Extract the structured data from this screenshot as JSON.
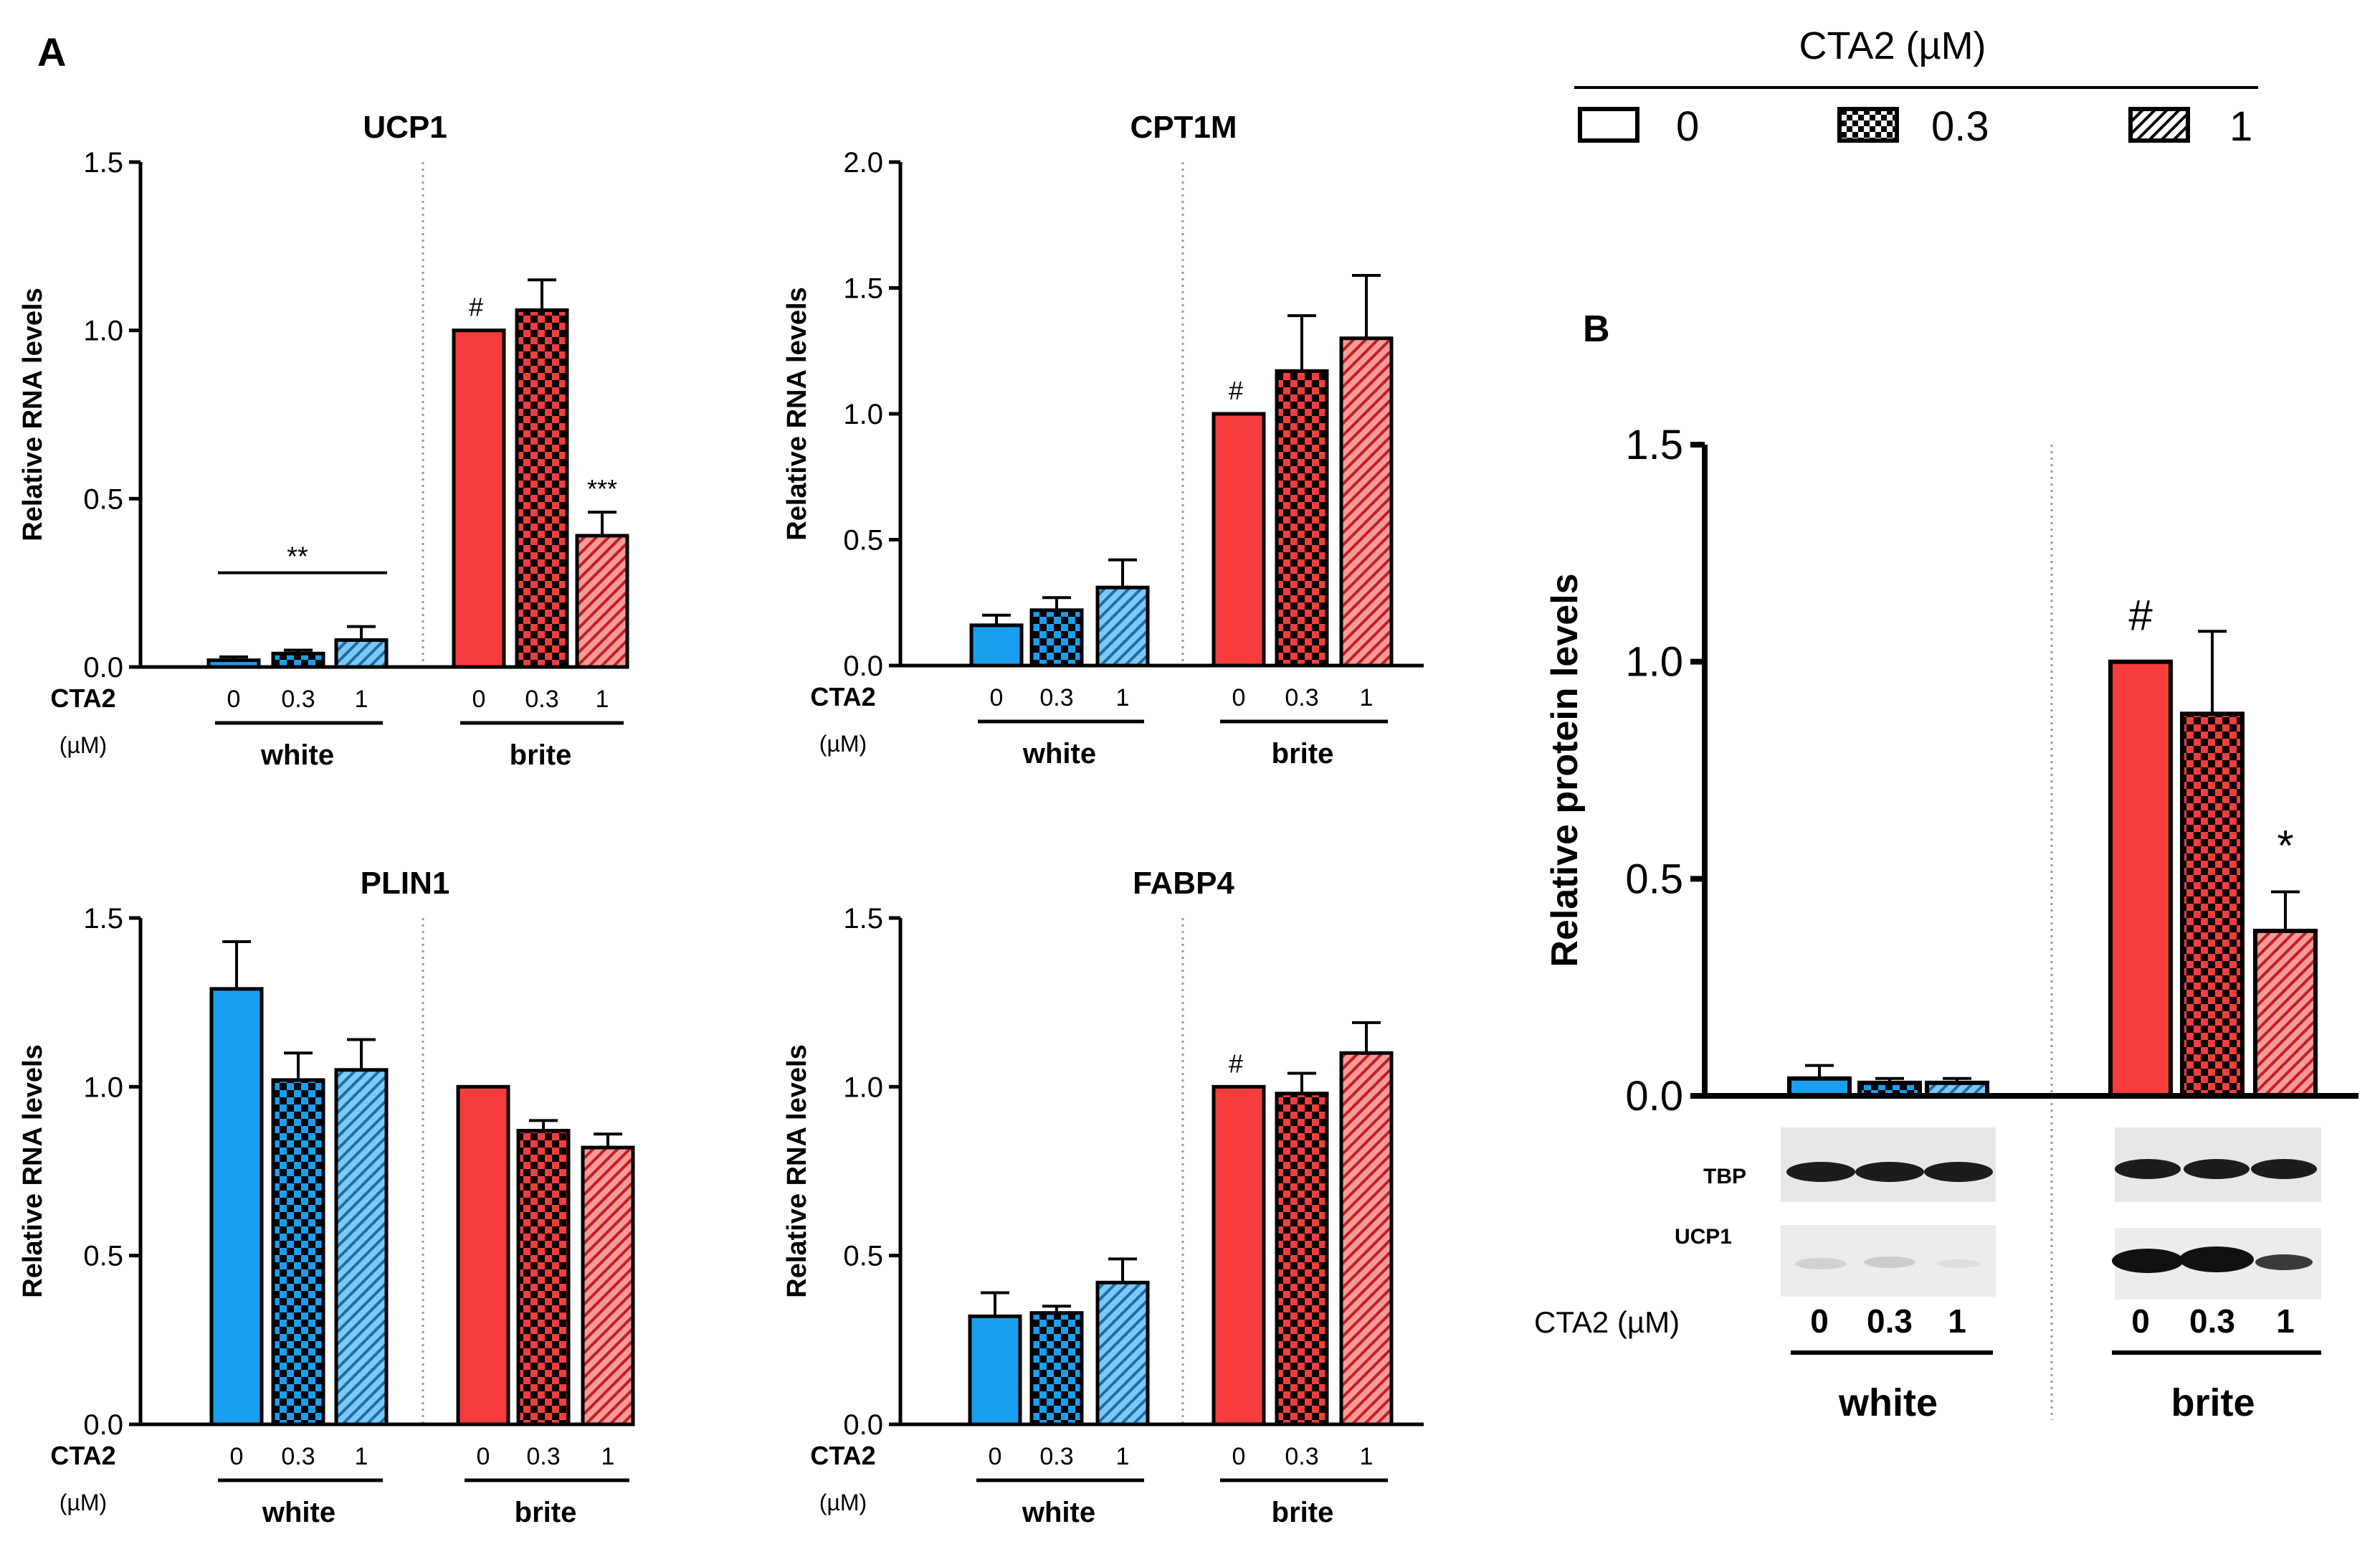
{
  "panel_labels": {
    "a": "A",
    "b": "B"
  },
  "legend": {
    "title": "CTA2 (µM)",
    "entries": [
      "0",
      "0.3",
      "1"
    ]
  },
  "colors": {
    "white_group": "#1a9fef",
    "brite_group": "#f53d3d",
    "axis": "#000000"
  },
  "x_labels": {
    "cta2_line1": "CTA2",
    "cta2_line2": "(µM)",
    "cta2_full": "CTA2 (µM)",
    "doses": [
      "0",
      "0.3",
      "1"
    ],
    "groups": [
      "white",
      "brite"
    ]
  },
  "blot": {
    "rows": [
      "TBP",
      "UCP1"
    ]
  },
  "chart_data": [
    {
      "id": "ucp1",
      "type": "bar",
      "title": "UCP1",
      "ylabel": "Relative RNA levels",
      "ylim": [
        0,
        1.5
      ],
      "yticks": [
        "0.0",
        "0.5",
        "1.0",
        "1.5"
      ],
      "categories": [
        "white 0",
        "white 0.3",
        "white 1",
        "brite 0",
        "brite 0.3",
        "brite 1"
      ],
      "values": [
        0.02,
        0.04,
        0.08,
        1.0,
        1.06,
        0.39
      ],
      "errors": [
        0.01,
        0.01,
        0.04,
        0,
        0.09,
        0.07
      ],
      "annotations": [
        {
          "text": "**",
          "over": "white"
        },
        {
          "text": "#",
          "bar": 3
        },
        {
          "text": "***",
          "bar": 5
        }
      ]
    },
    {
      "id": "cpt1m",
      "type": "bar",
      "title": "CPT1M",
      "ylabel": "Relative RNA levels",
      "ylim": [
        0,
        2.0
      ],
      "yticks": [
        "0.0",
        "0.5",
        "1.0",
        "1.5",
        "2.0"
      ],
      "categories": [
        "white 0",
        "white 0.3",
        "white 1",
        "brite 0",
        "brite 0.3",
        "brite 1"
      ],
      "values": [
        0.16,
        0.22,
        0.31,
        1.0,
        1.17,
        1.3
      ],
      "errors": [
        0.04,
        0.05,
        0.11,
        0,
        0.22,
        0.25
      ],
      "annotations": [
        {
          "text": "#",
          "bar": 3
        }
      ]
    },
    {
      "id": "plin1",
      "type": "bar",
      "title": "PLIN1",
      "ylabel": "Relative RNA levels",
      "ylim": [
        0,
        1.5
      ],
      "yticks": [
        "0.0",
        "0.5",
        "1.0",
        "1.5"
      ],
      "categories": [
        "white 0",
        "white 0.3",
        "white 1",
        "brite 0",
        "brite 0.3",
        "brite 1"
      ],
      "values": [
        1.29,
        1.02,
        1.05,
        1.0,
        0.87,
        0.82
      ],
      "errors": [
        0.14,
        0.08,
        0.09,
        0,
        0.03,
        0.04
      ],
      "annotations": []
    },
    {
      "id": "fabp4",
      "type": "bar",
      "title": "FABP4",
      "ylabel": "Relative RNA levels",
      "ylim": [
        0,
        1.5
      ],
      "yticks": [
        "0.0",
        "0.5",
        "1.0",
        "1.5"
      ],
      "categories": [
        "white 0",
        "white 0.3",
        "white 1",
        "brite 0",
        "brite 0.3",
        "brite 1"
      ],
      "values": [
        0.32,
        0.33,
        0.42,
        1.0,
        0.98,
        1.1
      ],
      "errors": [
        0.07,
        0.02,
        0.07,
        0,
        0.06,
        0.09
      ],
      "annotations": [
        {
          "text": "#",
          "bar": 3
        }
      ]
    },
    {
      "id": "protein",
      "type": "bar",
      "title": "",
      "ylabel": "Relative protein levels",
      "ylim": [
        0,
        1.5
      ],
      "yticks": [
        "0.0",
        "0.5",
        "1.0",
        "1.5"
      ],
      "categories": [
        "white 0",
        "white 0.3",
        "white 1",
        "brite 0",
        "brite 0.3",
        "brite 1"
      ],
      "values": [
        0.04,
        0.03,
        0.03,
        1.0,
        0.88,
        0.38
      ],
      "errors": [
        0.03,
        0.01,
        0.01,
        0,
        0.19,
        0.09
      ],
      "annotations": [
        {
          "text": "#",
          "bar": 3
        },
        {
          "text": "*",
          "bar": 5
        }
      ]
    }
  ]
}
